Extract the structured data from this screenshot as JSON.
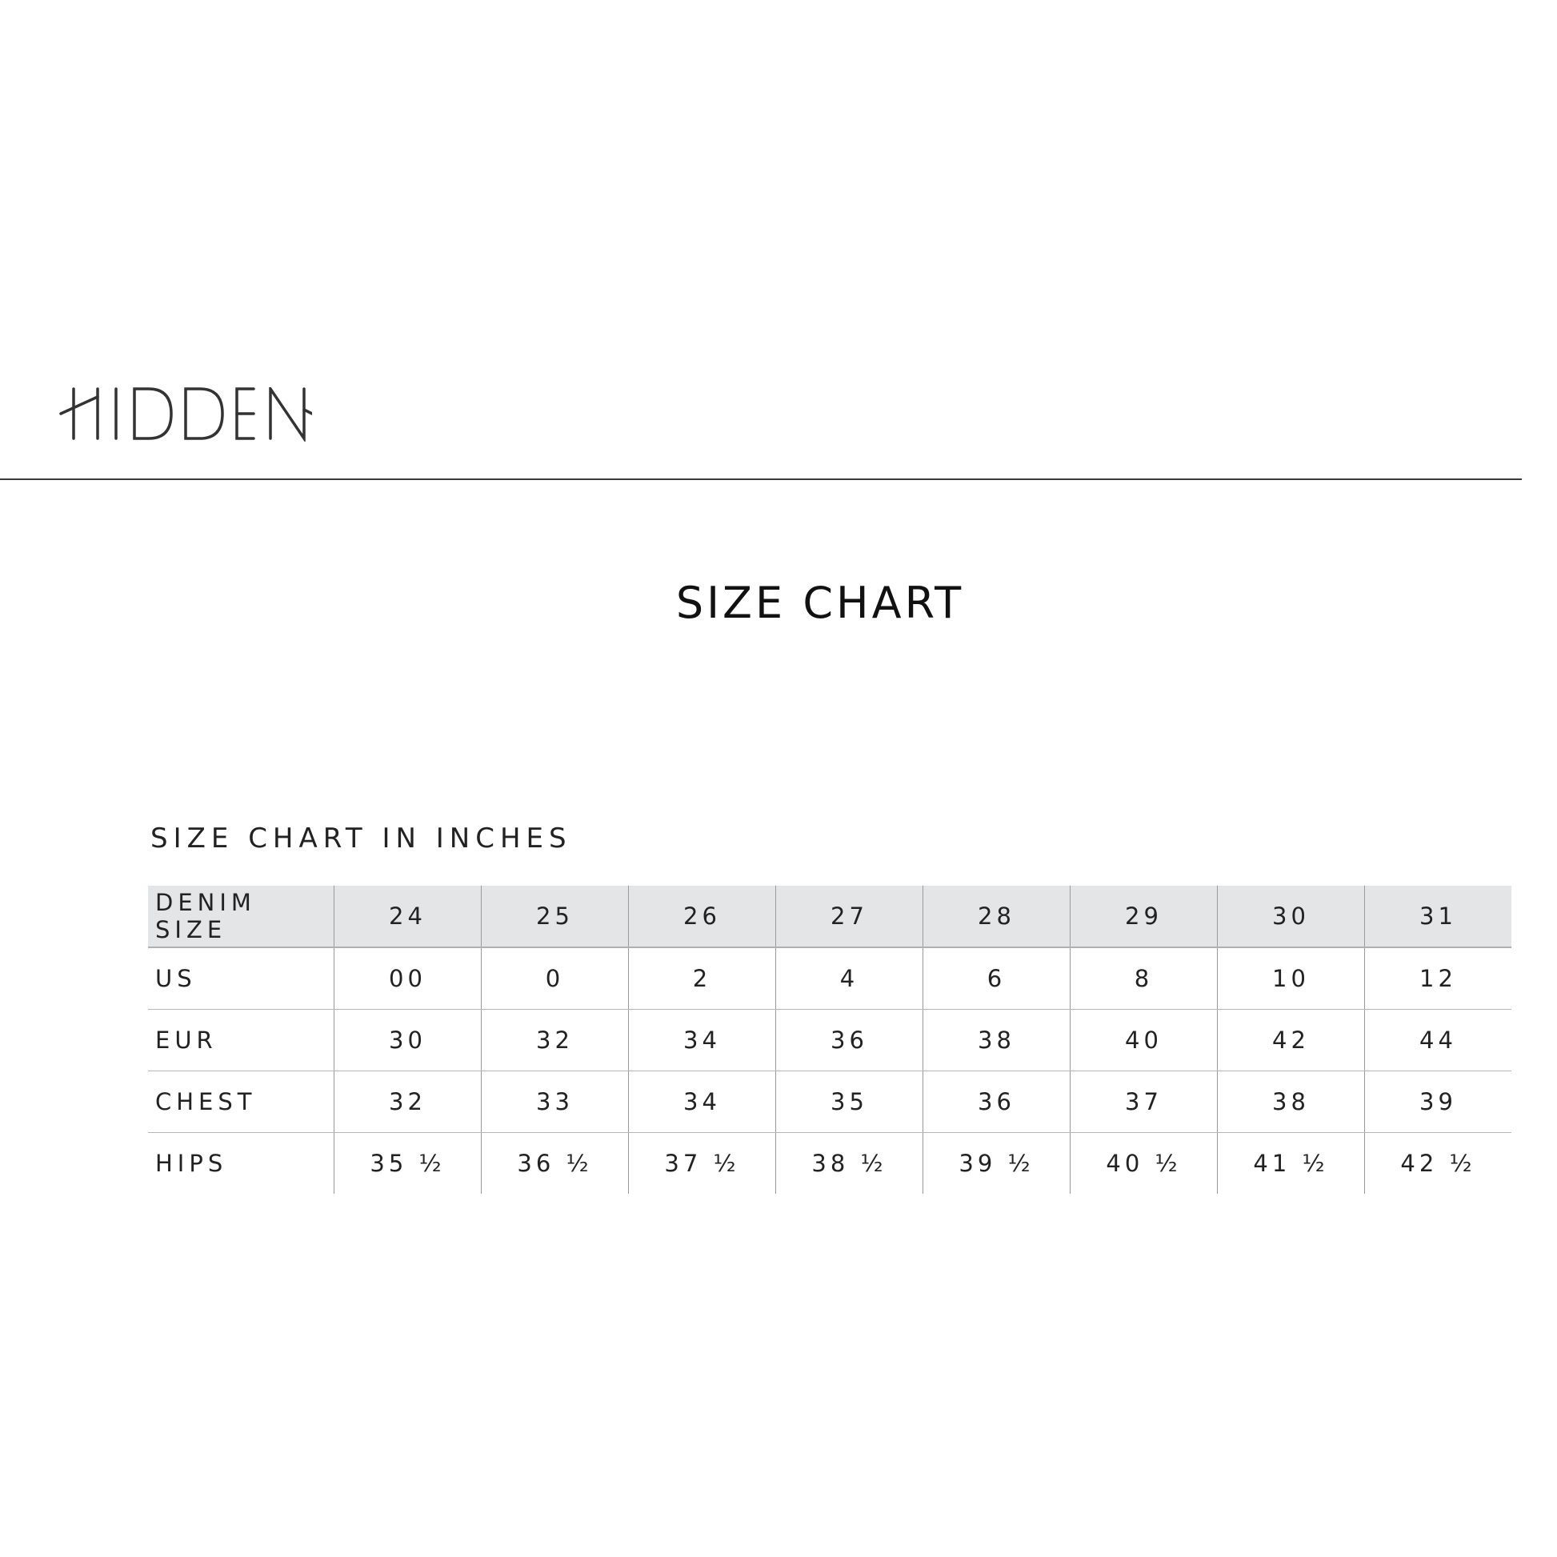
{
  "brand": {
    "logo_text": "HIDDEN"
  },
  "page": {
    "title": "SIZE CHART",
    "subtitle": "SIZE CHART IN INCHES"
  },
  "table": {
    "header": {
      "label": "DENIM SIZE",
      "values": [
        "24",
        "25",
        "26",
        "27",
        "28",
        "29",
        "30",
        "31"
      ]
    },
    "rows": [
      {
        "label": "US",
        "values": [
          "00",
          "0",
          "2",
          "4",
          "6",
          "8",
          "10",
          "12"
        ]
      },
      {
        "label": "EUR",
        "values": [
          "30",
          "32",
          "34",
          "36",
          "38",
          "40",
          "42",
          "44"
        ]
      },
      {
        "label": "CHEST",
        "values": [
          "32",
          "33",
          "34",
          "35",
          "36",
          "37",
          "38",
          "39"
        ]
      },
      {
        "label": "HIPS",
        "values": [
          "35 ½",
          "36 ½",
          "37 ½",
          "38 ½",
          "39 ½",
          "40 ½",
          "41 ½",
          "42 ½"
        ]
      }
    ]
  },
  "colors": {
    "header_bg": "#e4e5e6",
    "text": "#222222"
  }
}
